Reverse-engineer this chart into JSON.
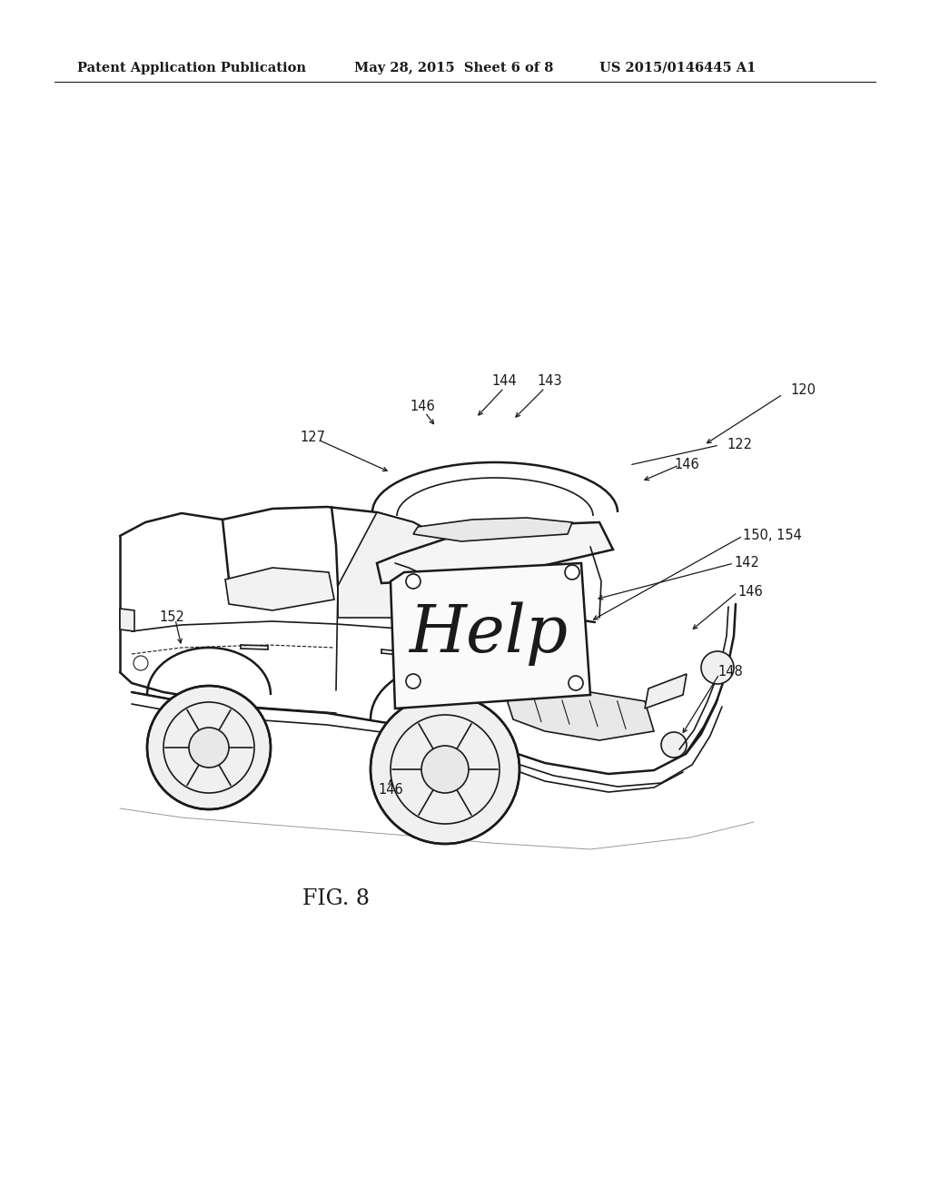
{
  "title_left": "Patent Application Publication",
  "title_mid": "May 28, 2015  Sheet 6 of 8",
  "title_right": "US 2015/0146445 A1",
  "fig_label": "FIG. 8",
  "bg_color": "#ffffff",
  "text_color": "#1a1a1a",
  "header_fontsize": 10.5,
  "fig_label_fontsize": 17,
  "line_color": "#1a1a1a"
}
